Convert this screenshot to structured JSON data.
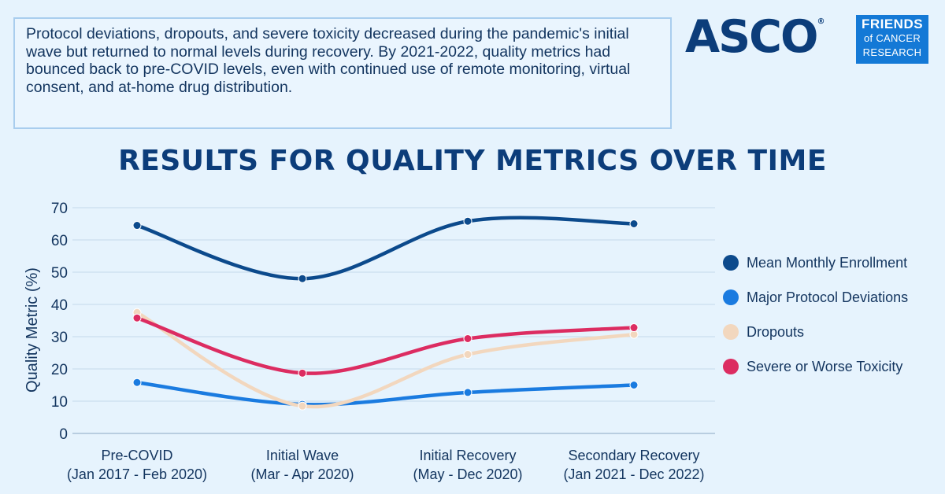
{
  "summary": "Protocol deviations, dropouts, and severe toxicity decreased during the pandemic's initial wave but returned to normal levels during recovery. By 2021-2022, quality metrics had bounced back to pre-COVID levels, even with continued use of remote monitoring, virtual consent, and at-home drug distribution.",
  "logos": {
    "asco": "ASCO",
    "asco_mark": "®",
    "friends_line1": "FRIENDS",
    "friends_line2": "of CANCER",
    "friends_line3": "RESEARCH"
  },
  "chart_data": {
    "type": "line",
    "title": "RESULTS FOR QUALITY METRICS OVER TIME",
    "ylabel": "Quality Metric (%)",
    "xlabel": "",
    "ylim": [
      0,
      70
    ],
    "yticks": [
      0,
      10,
      20,
      30,
      40,
      50,
      60,
      70
    ],
    "grid": true,
    "legend_position": "right",
    "categories": [
      {
        "name": "Pre-COVID",
        "range": "(Jan 2017 - Feb 2020)"
      },
      {
        "name": "Initial Wave",
        "range": "(Mar - Apr 2020)"
      },
      {
        "name": "Initial Recovery",
        "range": "(May - Dec 2020)"
      },
      {
        "name": "Secondary Recovery",
        "range": "(Jan 2021 - Dec 2022)"
      }
    ],
    "series": [
      {
        "name": "Mean Monthly Enrollment",
        "color": "#0c4a8c",
        "values": [
          64.5,
          48,
          65.8,
          65
        ]
      },
      {
        "name": "Major Protocol Deviations",
        "color": "#1a7be0",
        "values": [
          15.8,
          9,
          12.7,
          15
        ]
      },
      {
        "name": "Dropouts",
        "color": "#f2d7be",
        "values": [
          37.5,
          8.5,
          24.5,
          30.7
        ]
      },
      {
        "name": "Severe or Worse Toxicity",
        "color": "#dc2c61",
        "values": [
          35.8,
          18.7,
          29.4,
          32.8
        ]
      }
    ]
  }
}
